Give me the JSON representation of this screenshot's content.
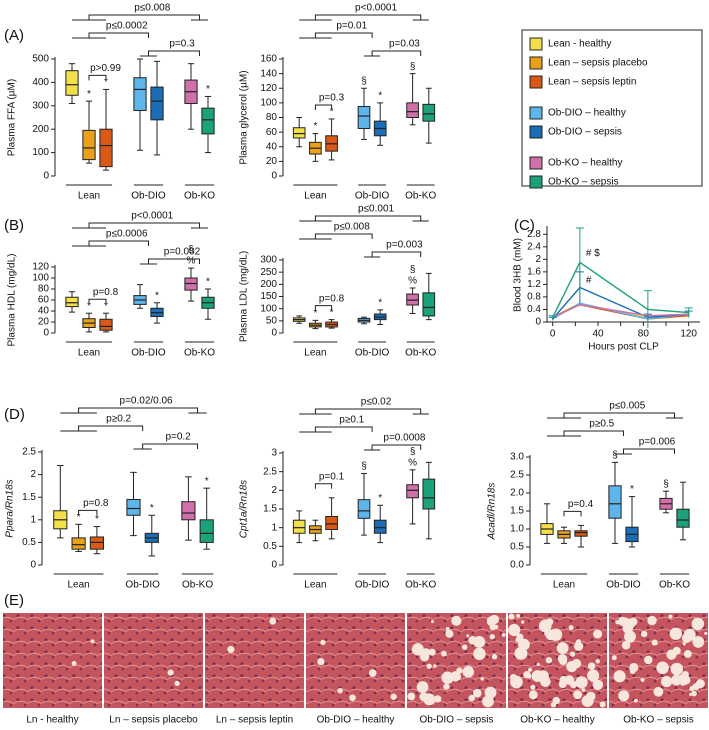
{
  "panel_labels": [
    "(A)",
    "(B)",
    "(C)",
    "(D)",
    "(E)"
  ],
  "legend": [
    {
      "name": "Lean - healthy",
      "color": "#f3df4c"
    },
    {
      "name": "Lean – sepsis placebo",
      "color": "#e9a11b"
    },
    {
      "name": "Lean – sepsis leptin",
      "color": "#d95a16"
    },
    {
      "name": "Ob-DIO – healthy",
      "color": "#5db5ea"
    },
    {
      "name": "Ob-DIO – sepsis",
      "color": "#1b6db6"
    },
    {
      "name": "Ob-KO – healthy",
      "color": "#cf70aa"
    },
    {
      "name": "Ob-KO – sepsis",
      "color": "#1ca27a"
    }
  ],
  "chart_data": [
    {
      "type": "box",
      "y_label": "Plasma FFA (µM)",
      "ylim": [
        0,
        500
      ],
      "yticks": [
        0,
        100,
        200,
        300,
        400,
        500
      ],
      "groups": [
        "Lean",
        "Ob-DIO",
        "Ob-KO"
      ],
      "boxes": [
        [
          310,
          345,
          390,
          450,
          480
        ],
        [
          55,
          70,
          120,
          195,
          320
        ],
        [
          25,
          40,
          130,
          200,
          370
        ],
        [
          110,
          280,
          370,
          420,
          500
        ],
        [
          90,
          240,
          320,
          380,
          490
        ],
        [
          200,
          310,
          360,
          410,
          480
        ],
        [
          100,
          180,
          240,
          290,
          340
        ]
      ],
      "box_labels": [
        null,
        "*",
        "*",
        null,
        null,
        null,
        "*"
      ],
      "annotations": [
        "p>0.99",
        "p≤0.0002",
        "p=0.3",
        "p≤0.008"
      ]
    },
    {
      "type": "box",
      "y_label": "Plasma glycerol (µM)",
      "ylim": [
        0,
        160
      ],
      "yticks": [
        0,
        20,
        40,
        60,
        80,
        100,
        120,
        140,
        160
      ],
      "groups": [
        "Lean",
        "Ob-DIO",
        "Ob-KO"
      ],
      "boxes": [
        [
          40,
          52,
          58,
          66,
          80
        ],
        [
          20,
          30,
          38,
          46,
          58
        ],
        [
          22,
          34,
          44,
          55,
          78
        ],
        [
          50,
          65,
          82,
          95,
          120
        ],
        [
          42,
          55,
          65,
          75,
          100
        ],
        [
          70,
          80,
          88,
          100,
          140
        ],
        [
          45,
          75,
          85,
          98,
          120
        ]
      ],
      "box_labels": [
        null,
        "*",
        "*",
        "§",
        "*",
        "§",
        null
      ],
      "annotations": [
        "p=0.3",
        "p=0.01",
        "p=0.03",
        "p<0.0001"
      ]
    },
    {
      "type": "box",
      "y_label": "Plasma HDL (mg/dL)",
      "ylim": [
        0,
        120
      ],
      "yticks": [
        0,
        20,
        40,
        60,
        80,
        100,
        120
      ],
      "groups": [
        "Lean",
        "Ob-DIO",
        "Ob-KO"
      ],
      "boxes": [
        [
          38,
          48,
          55,
          65,
          75
        ],
        [
          2,
          10,
          18,
          26,
          36
        ],
        [
          2,
          5,
          12,
          25,
          36
        ],
        [
          45,
          52,
          60,
          68,
          88
        ],
        [
          18,
          30,
          37,
          45,
          55
        ],
        [
          58,
          78,
          90,
          100,
          118
        ],
        [
          25,
          45,
          55,
          65,
          80
        ]
      ],
      "box_labels": [
        null,
        "*",
        "*",
        null,
        "*",
        [
          "§",
          "%"
        ],
        "*"
      ],
      "annotations": [
        "p=0.8",
        "p≤0.0006",
        "p=0.002",
        "p<0.0001"
      ]
    },
    {
      "type": "box",
      "y_label": "Plasma LDL (mg/dL)",
      "ylim": [
        0,
        300
      ],
      "yticks": [
        0,
        50,
        100,
        150,
        200,
        250,
        300
      ],
      "groups": [
        "Lean",
        "Ob-DIO",
        "Ob-KO"
      ],
      "boxes": [
        [
          40,
          48,
          55,
          62,
          70
        ],
        [
          18,
          25,
          32,
          40,
          52
        ],
        [
          20,
          25,
          35,
          45,
          55
        ],
        [
          38,
          45,
          52,
          60,
          65
        ],
        [
          35,
          55,
          65,
          78,
          95
        ],
        [
          80,
          115,
          135,
          160,
          185
        ],
        [
          55,
          70,
          105,
          165,
          245
        ]
      ],
      "box_labels": [
        null,
        "*",
        "*",
        null,
        "*",
        [
          "§",
          "%"
        ],
        null
      ],
      "annotations": [
        "p=0.8",
        "p≤0.008",
        "p=0.003",
        "p≤0.001"
      ]
    },
    {
      "type": "line",
      "y_label": "Blood 3HB (mM)",
      "x_label": "Hours post CLP",
      "x": [
        0,
        24,
        84,
        120
      ],
      "xlim": [
        -5,
        130
      ],
      "xticks": [
        0,
        20,
        40,
        60,
        80,
        100,
        120
      ],
      "ylim": [
        0,
        3
      ],
      "yticks": [
        0,
        0.4,
        0.8,
        1.2,
        1.6,
        2,
        2.4,
        2.8
      ],
      "series": [
        {
          "color": "#f3df4c",
          "values": [
            0.15,
            0.55,
            0.15,
            0.25
          ]
        },
        {
          "color": "#e9a11b",
          "values": [
            0.15,
            0.6,
            0.1,
            0.2
          ]
        },
        {
          "color": "#d95a16",
          "values": [
            0.15,
            0.55,
            0.1,
            0.2
          ]
        },
        {
          "color": "#5db5ea",
          "values": [
            0.1,
            0.6,
            0.1,
            0.25
          ]
        },
        {
          "color": "#1b6db6",
          "values": [
            0.1,
            1.1,
            0.15,
            0.25
          ],
          "errors": [
            0.05,
            0.5,
            0.1,
            0.1
          ]
        },
        {
          "color": "#cf70aa",
          "values": [
            0.15,
            0.55,
            0.2,
            0.25
          ]
        },
        {
          "color": "#1ca27a",
          "values": [
            0.15,
            1.9,
            0.4,
            0.3
          ],
          "errors": [
            0.05,
            1.1,
            0.6,
            0.15
          ]
        }
      ],
      "annotations": [
        "# $",
        "#"
      ]
    },
    {
      "type": "box",
      "y_label": "Ppara/Rn18s",
      "ylim": [
        0,
        2.5
      ],
      "yticks": [
        0,
        0.5,
        1,
        1.5,
        2,
        2.5
      ],
      "groups": [
        "Lean",
        "Ob-DIO",
        "Ob-KO"
      ],
      "boxes": [
        [
          0.6,
          0.8,
          1.0,
          1.2,
          2.2
        ],
        [
          0.3,
          0.35,
          0.45,
          0.6,
          0.9
        ],
        [
          0.25,
          0.35,
          0.5,
          0.62,
          0.85
        ],
        [
          0.65,
          1.1,
          1.25,
          1.45,
          2.05
        ],
        [
          0.2,
          0.5,
          0.6,
          0.7,
          1.1
        ],
        [
          0.55,
          1.0,
          1.15,
          1.4,
          1.95
        ],
        [
          0.35,
          0.5,
          0.7,
          1.0,
          1.7
        ]
      ],
      "box_labels": [
        null,
        "*",
        "*",
        null,
        "*",
        null,
        "*"
      ],
      "annotations": [
        "p=0.8",
        "p≥0.2",
        "p=0.2",
        "p=0.02/0.06"
      ]
    },
    {
      "type": "box",
      "y_label": "Cpt1a/Rn18s",
      "ylim": [
        0,
        3
      ],
      "yticks": [
        0,
        0.5,
        1,
        1.5,
        2,
        2.5,
        3
      ],
      "groups": [
        "Lean",
        "Ob-DIO",
        "Ob-KO"
      ],
      "boxes": [
        [
          0.6,
          0.85,
          1.0,
          1.2,
          1.45
        ],
        [
          0.65,
          0.85,
          0.95,
          1.05,
          1.2
        ],
        [
          0.7,
          0.95,
          1.1,
          1.3,
          1.8
        ],
        [
          0.8,
          1.25,
          1.45,
          1.75,
          2.45
        ],
        [
          0.6,
          0.85,
          1.0,
          1.2,
          1.6
        ],
        [
          1.1,
          1.8,
          2.0,
          2.15,
          2.55
        ],
        [
          0.7,
          1.5,
          1.8,
          2.3,
          2.75
        ]
      ],
      "box_labels": [
        null,
        null,
        null,
        "§",
        "*",
        [
          "§",
          "%"
        ],
        null
      ],
      "annotations": [
        "p=0.1",
        "p≥0.1",
        "p=0.0008",
        "p≤0.02"
      ]
    },
    {
      "type": "box",
      "y_label": "Acadl/Rn18s",
      "ylim": [
        0,
        3
      ],
      "yticks": [
        {
          "value": 0,
          "label": "0.0"
        },
        0.5,
        {
          "value": 1,
          "label": "1.0"
        },
        1.5,
        {
          "value": 2,
          "label": "2.0"
        },
        2.5,
        {
          "value": 3,
          "label": "3.0"
        }
      ],
      "groups": [
        "Lean",
        "Ob-DIO",
        "Ob-KO"
      ],
      "boxes": [
        [
          0.6,
          0.85,
          1.0,
          1.15,
          1.7
        ],
        [
          0.6,
          0.75,
          0.85,
          0.95,
          1.05
        ],
        [
          0.5,
          0.8,
          0.9,
          0.95,
          1.1
        ],
        [
          0.6,
          1.3,
          1.7,
          2.2,
          2.85
        ],
        [
          0.5,
          0.65,
          0.85,
          1.05,
          1.9
        ],
        [
          1.45,
          1.55,
          1.7,
          1.85,
          2.05
        ],
        [
          0.7,
          1.05,
          1.25,
          1.55,
          2.3
        ]
      ],
      "box_labels": [
        null,
        null,
        null,
        "§",
        "*",
        "§",
        null
      ],
      "annotations": [
        "p=0.4",
        "p≥0.5",
        "p=0.006",
        "p≤0.005"
      ]
    }
  ],
  "histology": {
    "captions": [
      "Ln - healthy",
      "Ln – sepsis placebo",
      "Ln – sepsis leptin",
      "Ob-DIO – healthy",
      "Ob-DIO – sepsis",
      "Ob-KO – healthy",
      "Ob-KO – sepsis"
    ]
  }
}
